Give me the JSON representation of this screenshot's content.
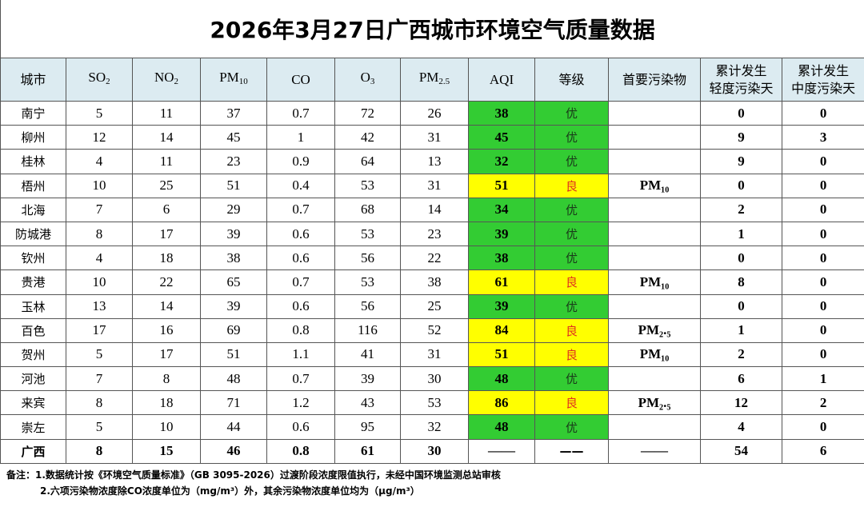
{
  "title": "2026年3月27日广西城市环境空气质量数据",
  "header": [
    {
      "text": "城市"
    },
    {
      "text": "SO",
      "sub": "2"
    },
    {
      "text": "NO",
      "sub": "2"
    },
    {
      "text": "PM",
      "sub": "10"
    },
    {
      "text": "CO"
    },
    {
      "text": "O",
      "sub": "3"
    },
    {
      "text": "PM",
      "sub": "2.5"
    },
    {
      "text": "AQI"
    },
    {
      "text": "等级"
    },
    {
      "text": "首要污染物"
    },
    {
      "lines": [
        "累计发生",
        "轻度污染天"
      ]
    },
    {
      "lines": [
        "累计发生",
        "中度污染天"
      ]
    }
  ],
  "grade_styles": {
    "优": {
      "background": "#33cc33",
      "color": "#1a3a1a"
    },
    "良": {
      "background": "#ffff00",
      "color": "#e0301e"
    }
  },
  "rows": [
    [
      "南宁",
      "5",
      "11",
      "37",
      "0.7",
      "72",
      "26",
      "38",
      "优",
      null,
      "0",
      "0"
    ],
    [
      "柳州",
      "12",
      "14",
      "45",
      "1",
      "42",
      "31",
      "45",
      "优",
      null,
      "9",
      "3"
    ],
    [
      "桂林",
      "4",
      "11",
      "23",
      "0.9",
      "64",
      "13",
      "32",
      "优",
      null,
      "9",
      "0"
    ],
    [
      "梧州",
      "10",
      "25",
      "51",
      "0.4",
      "53",
      "31",
      "51",
      "良",
      "PM₁₀",
      "0",
      "0"
    ],
    [
      "北海",
      "7",
      "6",
      "29",
      "0.7",
      "68",
      "14",
      "34",
      "优",
      null,
      "2",
      "0"
    ],
    [
      "防城港",
      "8",
      "17",
      "39",
      "0.6",
      "53",
      "23",
      "39",
      "优",
      null,
      "1",
      "0"
    ],
    [
      "钦州",
      "4",
      "18",
      "38",
      "0.6",
      "56",
      "22",
      "38",
      "优",
      null,
      "0",
      "0"
    ],
    [
      "贵港",
      "10",
      "22",
      "65",
      "0.7",
      "53",
      "38",
      "61",
      "良",
      "PM₁₀",
      "8",
      "0"
    ],
    [
      "玉林",
      "13",
      "14",
      "39",
      "0.6",
      "56",
      "25",
      "39",
      "优",
      null,
      "0",
      "0"
    ],
    [
      "百色",
      "17",
      "16",
      "69",
      "0.8",
      "116",
      "52",
      "84",
      "良",
      "PM₂.₅",
      "1",
      "0"
    ],
    [
      "贺州",
      "5",
      "17",
      "51",
      "1.1",
      "41",
      "31",
      "51",
      "良",
      "PM₁₀",
      "2",
      "0"
    ],
    [
      "河池",
      "7",
      "8",
      "48",
      "0.7",
      "39",
      "30",
      "48",
      "优",
      null,
      "6",
      "1"
    ],
    [
      "来宾",
      "8",
      "18",
      "71",
      "1.2",
      "43",
      "53",
      "86",
      "良",
      "PM₂.₅",
      "12",
      "2"
    ],
    [
      "崇左",
      "5",
      "10",
      "44",
      "0.6",
      "95",
      "32",
      "48",
      "优",
      null,
      "4",
      "0"
    ],
    [
      "广西",
      "8",
      "15",
      "46",
      "0.8",
      "61",
      "30",
      "——",
      "——",
      "——",
      "54",
      "6"
    ]
  ],
  "notes": {
    "label": "备注：",
    "items": [
      "1.数据统计按《环境空气质量标准》（GB 3095-2026）过渡阶段浓度限值执行，未经中国环境监测总站审核",
      "2.六项污染物浓度除CO浓度单位为（mg/m³）外，其余污染物浓度单位均为（μg/m³）"
    ]
  }
}
